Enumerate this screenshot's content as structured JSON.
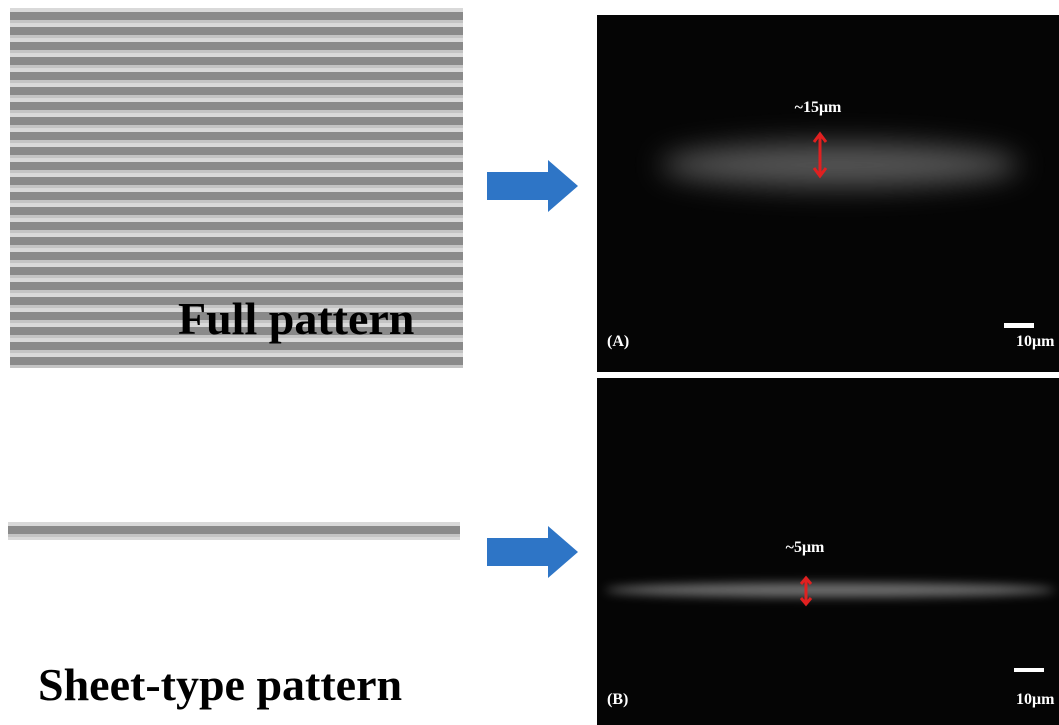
{
  "patterns": [
    {
      "label": "Full pattern"
    },
    {
      "label": "Sheet-type pattern"
    }
  ],
  "panels": [
    {
      "label": "(A)",
      "measurement": "~15μm",
      "scale": "10μm"
    },
    {
      "label": "(B)",
      "measurement": "~5μm",
      "scale": "10μm"
    }
  ]
}
